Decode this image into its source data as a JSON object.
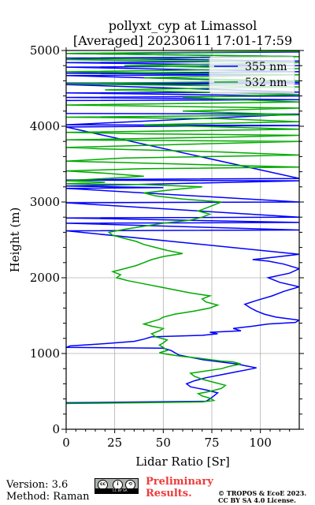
{
  "chart_data": {
    "type": "line",
    "title": "pollyxt_cyp at Limassol",
    "subtitle": "[Averaged] 20230611 17:01-17:59",
    "xlabel": "Lidar Ratio [Sr]",
    "ylabel": "Height (m)",
    "xlim": [
      0,
      120
    ],
    "ylim": [
      0,
      5000
    ],
    "x_ticks": [
      0,
      25,
      50,
      75,
      100
    ],
    "y_ticks": [
      0,
      1000,
      2000,
      3000,
      4000,
      5000
    ],
    "grid": true,
    "legend_position": "top-right",
    "series": [
      {
        "name": "355 nm",
        "color": "#0000ff",
        "points": [
          [
            0,
            350
          ],
          [
            40,
            360
          ],
          [
            72,
            370
          ],
          [
            74,
            400
          ],
          [
            76,
            440
          ],
          [
            78,
            480
          ],
          [
            75,
            500
          ],
          [
            72,
            520
          ],
          [
            68,
            540
          ],
          [
            64,
            560
          ],
          [
            62,
            600
          ],
          [
            66,
            640
          ],
          [
            72,
            680
          ],
          [
            80,
            720
          ],
          [
            88,
            760
          ],
          [
            94,
            790
          ],
          [
            98,
            810
          ],
          [
            92,
            840
          ],
          [
            88,
            860
          ],
          [
            82,
            880
          ],
          [
            76,
            900
          ],
          [
            70,
            920
          ],
          [
            64,
            950
          ],
          [
            58,
            980
          ],
          [
            56,
            1010
          ],
          [
            54,
            1040
          ],
          [
            50,
            1070
          ],
          [
            0,
            1080
          ],
          [
            2,
            1100
          ],
          [
            20,
            1130
          ],
          [
            35,
            1160
          ],
          [
            40,
            1190
          ],
          [
            44,
            1220
          ],
          [
            70,
            1240
          ],
          [
            78,
            1260
          ],
          [
            74,
            1280
          ],
          [
            90,
            1300
          ],
          [
            86,
            1330
          ],
          [
            96,
            1360
          ],
          [
            104,
            1390
          ],
          [
            118,
            1410
          ],
          [
            120,
            1440
          ],
          [
            108,
            1480
          ],
          [
            102,
            1520
          ],
          [
            98,
            1560
          ],
          [
            95,
            1600
          ],
          [
            92,
            1650
          ],
          [
            98,
            1700
          ],
          [
            106,
            1760
          ],
          [
            112,
            1820
          ],
          [
            120,
            1880
          ],
          [
            110,
            1940
          ],
          [
            104,
            2000
          ],
          [
            115,
            2060
          ],
          [
            120,
            2120
          ],
          [
            112,
            2180
          ],
          [
            104,
            2220
          ],
          [
            96,
            2240
          ],
          [
            110,
            2280
          ],
          [
            120,
            2310
          ],
          [
            0,
            2620
          ],
          [
            120,
            2630
          ],
          [
            0,
            2720
          ],
          [
            120,
            2730
          ],
          [
            0,
            2790
          ],
          [
            120,
            2800
          ],
          [
            0,
            2990
          ],
          [
            120,
            3000
          ],
          [
            0,
            3180
          ],
          [
            50,
            3190
          ],
          [
            0,
            3210
          ],
          [
            120,
            3280
          ],
          [
            0,
            3290
          ],
          [
            30,
            3300
          ],
          [
            120,
            3310
          ],
          [
            0,
            3990
          ],
          [
            50,
            4000
          ],
          [
            120,
            4010
          ],
          [
            0,
            4020
          ],
          [
            120,
            4160
          ],
          [
            0,
            4170
          ],
          [
            0,
            4340
          ],
          [
            120,
            4350
          ],
          [
            0,
            4380
          ],
          [
            120,
            4400
          ],
          [
            0,
            4440
          ],
          [
            120,
            4450
          ],
          [
            0,
            4550
          ],
          [
            120,
            4560
          ],
          [
            0,
            4570
          ],
          [
            120,
            4580
          ],
          [
            0,
            4670
          ],
          [
            120,
            4680
          ],
          [
            0,
            4700
          ],
          [
            120,
            4720
          ],
          [
            0,
            4780
          ],
          [
            120,
            4800
          ],
          [
            0,
            4840
          ],
          [
            120,
            4860
          ],
          [
            0,
            4900
          ],
          [
            120,
            4920
          ],
          [
            0,
            4960
          ],
          [
            120,
            4980
          ]
        ]
      },
      {
        "name": "532 nm",
        "color": "#00aa00",
        "points": [
          [
            0,
            340
          ],
          [
            40,
            350
          ],
          [
            70,
            360
          ],
          [
            76,
            380
          ],
          [
            74,
            410
          ],
          [
            70,
            440
          ],
          [
            68,
            470
          ],
          [
            74,
            500
          ],
          [
            80,
            540
          ],
          [
            82,
            580
          ],
          [
            76,
            620
          ],
          [
            70,
            660
          ],
          [
            66,
            700
          ],
          [
            64,
            740
          ],
          [
            72,
            770
          ],
          [
            80,
            800
          ],
          [
            84,
            830
          ],
          [
            90,
            860
          ],
          [
            86,
            890
          ],
          [
            80,
            900
          ],
          [
            74,
            920
          ],
          [
            68,
            940
          ],
          [
            60,
            960
          ],
          [
            52,
            990
          ],
          [
            48,
            1010
          ],
          [
            52,
            1040
          ],
          [
            50,
            1080
          ],
          [
            48,
            1110
          ],
          [
            50,
            1140
          ],
          [
            52,
            1180
          ],
          [
            46,
            1220
          ],
          [
            44,
            1260
          ],
          [
            48,
            1300
          ],
          [
            50,
            1330
          ],
          [
            44,
            1360
          ],
          [
            40,
            1390
          ],
          [
            44,
            1420
          ],
          [
            48,
            1450
          ],
          [
            50,
            1480
          ],
          [
            56,
            1520
          ],
          [
            66,
            1560
          ],
          [
            74,
            1600
          ],
          [
            78,
            1640
          ],
          [
            72,
            1680
          ],
          [
            70,
            1720
          ],
          [
            74,
            1760
          ],
          [
            64,
            1800
          ],
          [
            56,
            1840
          ],
          [
            48,
            1880
          ],
          [
            40,
            1920
          ],
          [
            32,
            1960
          ],
          [
            26,
            2000
          ],
          [
            28,
            2040
          ],
          [
            24,
            2080
          ],
          [
            30,
            2120
          ],
          [
            36,
            2160
          ],
          [
            40,
            2200
          ],
          [
            44,
            2240
          ],
          [
            50,
            2280
          ],
          [
            60,
            2320
          ],
          [
            52,
            2360
          ],
          [
            46,
            2400
          ],
          [
            40,
            2440
          ],
          [
            36,
            2480
          ],
          [
            30,
            2520
          ],
          [
            24,
            2560
          ],
          [
            22,
            2600
          ],
          [
            30,
            2640
          ],
          [
            40,
            2680
          ],
          [
            50,
            2720
          ],
          [
            64,
            2760
          ],
          [
            70,
            2800
          ],
          [
            74,
            2840
          ],
          [
            68,
            2880
          ],
          [
            72,
            2920
          ],
          [
            76,
            2960
          ],
          [
            80,
            3000
          ],
          [
            60,
            3040
          ],
          [
            46,
            3080
          ],
          [
            40,
            3120
          ],
          [
            54,
            3160
          ],
          [
            70,
            3200
          ],
          [
            40,
            3230
          ],
          [
            0,
            3240
          ],
          [
            20,
            3260
          ],
          [
            0,
            3280
          ],
          [
            40,
            3340
          ],
          [
            20,
            3380
          ],
          [
            0,
            3410
          ],
          [
            40,
            3440
          ],
          [
            120,
            3460
          ],
          [
            60,
            3500
          ],
          [
            0,
            3540
          ],
          [
            30,
            3580
          ],
          [
            120,
            3620
          ],
          [
            80,
            3660
          ],
          [
            20,
            3700
          ],
          [
            0,
            3720
          ],
          [
            60,
            3760
          ],
          [
            120,
            3800
          ],
          [
            0,
            3820
          ],
          [
            90,
            3860
          ],
          [
            120,
            3880
          ],
          [
            40,
            3900
          ],
          [
            0,
            3920
          ],
          [
            120,
            3960
          ],
          [
            40,
            4020
          ],
          [
            120,
            4060
          ],
          [
            80,
            4100
          ],
          [
            0,
            4120
          ],
          [
            120,
            4150
          ],
          [
            60,
            4200
          ],
          [
            120,
            4240
          ],
          [
            0,
            4280
          ],
          [
            120,
            4320
          ],
          [
            60,
            4380
          ],
          [
            120,
            4420
          ],
          [
            20,
            4480
          ],
          [
            120,
            4520
          ],
          [
            0,
            4560
          ],
          [
            120,
            4600
          ],
          [
            40,
            4640
          ],
          [
            120,
            4680
          ],
          [
            0,
            4720
          ],
          [
            120,
            4760
          ],
          [
            30,
            4800
          ],
          [
            120,
            4840
          ],
          [
            0,
            4880
          ],
          [
            120,
            4920
          ],
          [
            0,
            4960
          ],
          [
            120,
            4990
          ]
        ]
      }
    ]
  },
  "footer": {
    "version": "Version: 3.6",
    "method": "Method: Raman",
    "preliminary_line1": "Preliminary",
    "preliminary_line2": "Results.",
    "copyright_line1": "© TROPOS & EcoE 2023.",
    "copyright_line2": "CC BY SA 4.0 License.",
    "license_badge_text": "CC BY SA"
  },
  "colors": {
    "series_355": "#0000ff",
    "series_532": "#00aa00",
    "preliminary": "#ee3b3b"
  }
}
